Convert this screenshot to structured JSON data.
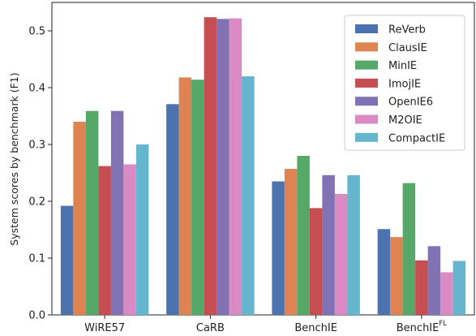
{
  "chart_data": {
    "type": "bar",
    "title": "",
    "xlabel": "",
    "ylabel": "System scores by benchmark (F1)",
    "ylim": [
      0,
      0.55
    ],
    "yticks": [
      0.0,
      0.1,
      0.2,
      0.3,
      0.4,
      0.5
    ],
    "ytick_labels": [
      "0.0",
      "0.1",
      "0.2",
      "0.3",
      "0.4",
      "0.5"
    ],
    "categories": [
      {
        "label": "WiRE57",
        "sup": ""
      },
      {
        "label": "CaRB",
        "sup": ""
      },
      {
        "label": "BenchIE",
        "sup": ""
      },
      {
        "label": "BenchIE",
        "sup": "FL"
      }
    ],
    "grid": false,
    "legend": "top-right",
    "series": [
      {
        "name": "ReVerb",
        "color": "#4c72b0",
        "values": [
          0.192,
          0.371,
          0.235,
          0.151
        ]
      },
      {
        "name": "ClausIE",
        "color": "#dd8452",
        "values": [
          0.34,
          0.418,
          0.257,
          0.137
        ]
      },
      {
        "name": "MinIE",
        "color": "#55a868",
        "values": [
          0.359,
          0.414,
          0.28,
          0.232
        ]
      },
      {
        "name": "ImojIE",
        "color": "#c44e52",
        "values": [
          0.262,
          0.524,
          0.188,
          0.096
        ]
      },
      {
        "name": "OpenIE6",
        "color": "#8172b3",
        "values": [
          0.359,
          0.521,
          0.246,
          0.121
        ]
      },
      {
        "name": "M2OIE",
        "color": "#da8bc3",
        "values": [
          0.265,
          0.522,
          0.213,
          0.075
        ]
      },
      {
        "name": "CompactIE",
        "color": "#64b5cd",
        "values": [
          0.3,
          0.42,
          0.246,
          0.095
        ]
      }
    ]
  }
}
